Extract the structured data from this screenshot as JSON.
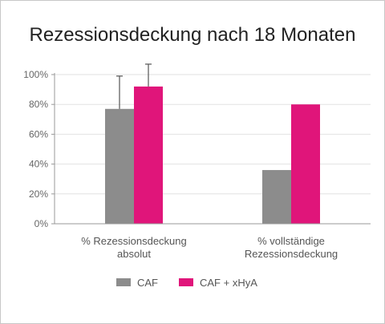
{
  "chart_data": {
    "type": "bar",
    "title": "Rezessionsdeckung nach 18 Monaten",
    "categories": [
      [
        "% Rezessionsdeckung",
        "absolut"
      ],
      [
        "% vollständige",
        "Rezessionsdeckung"
      ]
    ],
    "series": [
      {
        "name": "CAF",
        "color": "#8c8c8c",
        "values": [
          77,
          36
        ],
        "error": [
          22,
          null
        ]
      },
      {
        "name": "CAF + xHyA",
        "color": "#e0157a",
        "values": [
          92,
          80
        ],
        "error": [
          15,
          null
        ]
      }
    ],
    "yticks": [
      "0%",
      "20%",
      "40%",
      "60%",
      "80%",
      "100%"
    ],
    "ylim": [
      0,
      100
    ],
    "grid": true,
    "legend_position": "bottom"
  }
}
